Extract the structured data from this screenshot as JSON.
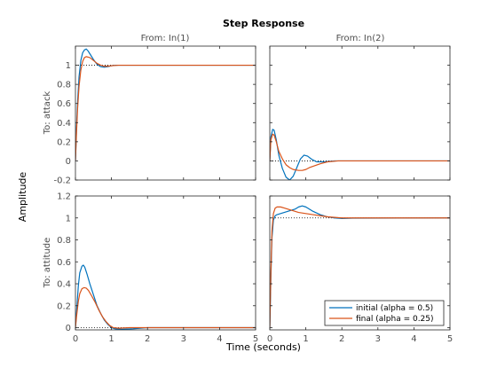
{
  "figure": {
    "title": "Step Response",
    "xlabel": "Time (seconds)",
    "ylabel": "Amplitude"
  },
  "columns": [
    "From: In(1)",
    "From: In(2)"
  ],
  "rows": [
    "To: attack",
    "To: attitude"
  ],
  "legend": {
    "entries": [
      "initial (alpha = 0.5)",
      "final (alpha = 0.25)"
    ],
    "location": "bottom-right of lower-right panel"
  },
  "colors": {
    "initial": "#0072BD",
    "final": "#D95319",
    "reference": "#000000"
  },
  "chart_data": {
    "type": "line",
    "title": "Step Response",
    "xlabel": "Time (seconds)",
    "ylabel": "Amplitude",
    "xlim": [
      0,
      5
    ],
    "xticks": [
      "0",
      "1",
      "2",
      "3",
      "4",
      "5"
    ],
    "grid": false,
    "legend_placement": "bottom-right",
    "panels": [
      {
        "id": "attack-in1",
        "row": "To: attack",
        "col": "From: In(1)",
        "ylim": [
          -0.2,
          1.2
        ],
        "yticks": [
          "-0.2",
          "0",
          "0.2",
          "0.4",
          "0.6",
          "0.8",
          "1"
        ],
        "steady_state": 1,
        "series": [
          {
            "name": "initial (alpha = 0.5)",
            "key": "initial",
            "x": [
              0,
              0.03,
              0.06,
              0.1,
              0.15,
              0.2,
              0.25,
              0.3,
              0.35,
              0.4,
              0.5,
              0.6,
              0.7,
              0.8,
              0.9,
              1.0,
              1.1,
              1.3,
              1.6,
              2.0,
              5
            ],
            "y": [
              0,
              0.35,
              0.62,
              0.88,
              1.05,
              1.13,
              1.16,
              1.17,
              1.15,
              1.12,
              1.06,
              1.01,
              0.985,
              0.98,
              0.985,
              0.995,
              1.0,
              1.0,
              1.0,
              1.0,
              1.0
            ]
          },
          {
            "name": "final (alpha = 0.25)",
            "key": "final",
            "x": [
              0,
              0.03,
              0.06,
              0.1,
              0.15,
              0.2,
              0.25,
              0.3,
              0.4,
              0.5,
              0.6,
              0.7,
              0.8,
              0.9,
              1.0,
              1.2,
              1.5,
              2.0,
              5
            ],
            "y": [
              0,
              0.3,
              0.55,
              0.78,
              0.95,
              1.04,
              1.08,
              1.09,
              1.08,
              1.05,
              1.02,
              1.0,
              0.99,
              0.99,
              0.995,
              1.0,
              1.0,
              1.0,
              1.0
            ]
          }
        ]
      },
      {
        "id": "attack-in2",
        "row": "To: attack",
        "col": "From: In(2)",
        "ylim": [
          -0.2,
          1.2
        ],
        "yticks": [],
        "steady_state": 0,
        "series": [
          {
            "name": "initial (alpha = 0.5)",
            "key": "initial",
            "x": [
              0,
              0.03,
              0.08,
              0.12,
              0.18,
              0.25,
              0.35,
              0.45,
              0.55,
              0.65,
              0.75,
              0.85,
              0.95,
              1.05,
              1.15,
              1.3,
              1.5,
              1.8,
              2.2,
              5
            ],
            "y": [
              0,
              0.25,
              0.33,
              0.32,
              0.22,
              0.06,
              -0.08,
              -0.17,
              -0.2,
              -0.16,
              -0.07,
              0.02,
              0.06,
              0.05,
              0.02,
              -0.01,
              -0.01,
              0.0,
              0.0,
              0.0
            ]
          },
          {
            "name": "final (alpha = 0.25)",
            "key": "final",
            "x": [
              0,
              0.03,
              0.08,
              0.12,
              0.18,
              0.25,
              0.35,
              0.45,
              0.55,
              0.65,
              0.8,
              0.9,
              1.0,
              1.1,
              1.25,
              1.4,
              1.6,
              1.9,
              2.3,
              5
            ],
            "y": [
              0,
              0.22,
              0.28,
              0.27,
              0.2,
              0.1,
              0.02,
              -0.04,
              -0.07,
              -0.09,
              -0.1,
              -0.1,
              -0.09,
              -0.07,
              -0.05,
              -0.03,
              -0.01,
              0.0,
              0.0,
              0.0
            ]
          }
        ]
      },
      {
        "id": "attitude-in1",
        "row": "To: attitude",
        "col": "From: In(1)",
        "ylim": [
          -0.02,
          1.2
        ],
        "yticks": [
          "0",
          "0.2",
          "0.4",
          "0.6",
          "0.8",
          "1",
          "1.2"
        ],
        "steady_state": 0,
        "series": [
          {
            "name": "initial (alpha = 0.5)",
            "key": "initial",
            "x": [
              0,
              0.03,
              0.08,
              0.12,
              0.18,
              0.22,
              0.26,
              0.32,
              0.4,
              0.5,
              0.6,
              0.7,
              0.8,
              0.9,
              1.0,
              1.1,
              1.3,
              1.6,
              2.0,
              5
            ],
            "y": [
              0,
              0.14,
              0.38,
              0.5,
              0.56,
              0.57,
              0.55,
              0.49,
              0.4,
              0.3,
              0.2,
              0.13,
              0.07,
              0.03,
              0.0,
              -0.01,
              -0.015,
              -0.01,
              0.0,
              0.0
            ]
          },
          {
            "name": "final (alpha = 0.25)",
            "key": "final",
            "x": [
              0,
              0.03,
              0.08,
              0.12,
              0.18,
              0.24,
              0.3,
              0.36,
              0.45,
              0.55,
              0.65,
              0.75,
              0.85,
              0.95,
              1.05,
              1.2,
              1.5,
              2.0,
              5
            ],
            "y": [
              0,
              0.1,
              0.24,
              0.31,
              0.355,
              0.365,
              0.36,
              0.34,
              0.29,
              0.23,
              0.16,
              0.1,
              0.055,
              0.02,
              0.0,
              -0.005,
              0.0,
              0.0,
              0.0
            ]
          }
        ]
      },
      {
        "id": "attitude-in2",
        "row": "To: attitude",
        "col": "From: In(2)",
        "ylim": [
          -0.02,
          1.2
        ],
        "yticks": [],
        "steady_state": 1,
        "series": [
          {
            "name": "initial (alpha = 0.5)",
            "key": "initial",
            "x": [
              0,
              0.03,
              0.06,
              0.1,
              0.15,
              0.2,
              0.3,
              0.4,
              0.5,
              0.6,
              0.7,
              0.8,
              0.9,
              1.0,
              1.1,
              1.2,
              1.4,
              1.6,
              1.8,
              2.0,
              2.3,
              5
            ],
            "y": [
              0,
              0.45,
              0.82,
              0.98,
              1.02,
              1.03,
              1.04,
              1.05,
              1.06,
              1.07,
              1.08,
              1.1,
              1.11,
              1.1,
              1.08,
              1.06,
              1.03,
              1.01,
              1.0,
              0.995,
              0.998,
              1.0
            ]
          },
          {
            "name": "final (alpha = 0.25)",
            "key": "final",
            "x": [
              0,
              0.03,
              0.06,
              0.1,
              0.15,
              0.2,
              0.3,
              0.4,
              0.5,
              0.6,
              0.7,
              0.8,
              0.9,
              1.0,
              1.2,
              1.4,
              1.6,
              1.8,
              2.0,
              2.4,
              5
            ],
            "y": [
              0,
              0.5,
              0.88,
              1.04,
              1.09,
              1.1,
              1.1,
              1.09,
              1.08,
              1.07,
              1.06,
              1.05,
              1.045,
              1.04,
              1.03,
              1.02,
              1.01,
              1.005,
              1.0,
              1.0,
              1.0
            ]
          }
        ]
      }
    ]
  }
}
